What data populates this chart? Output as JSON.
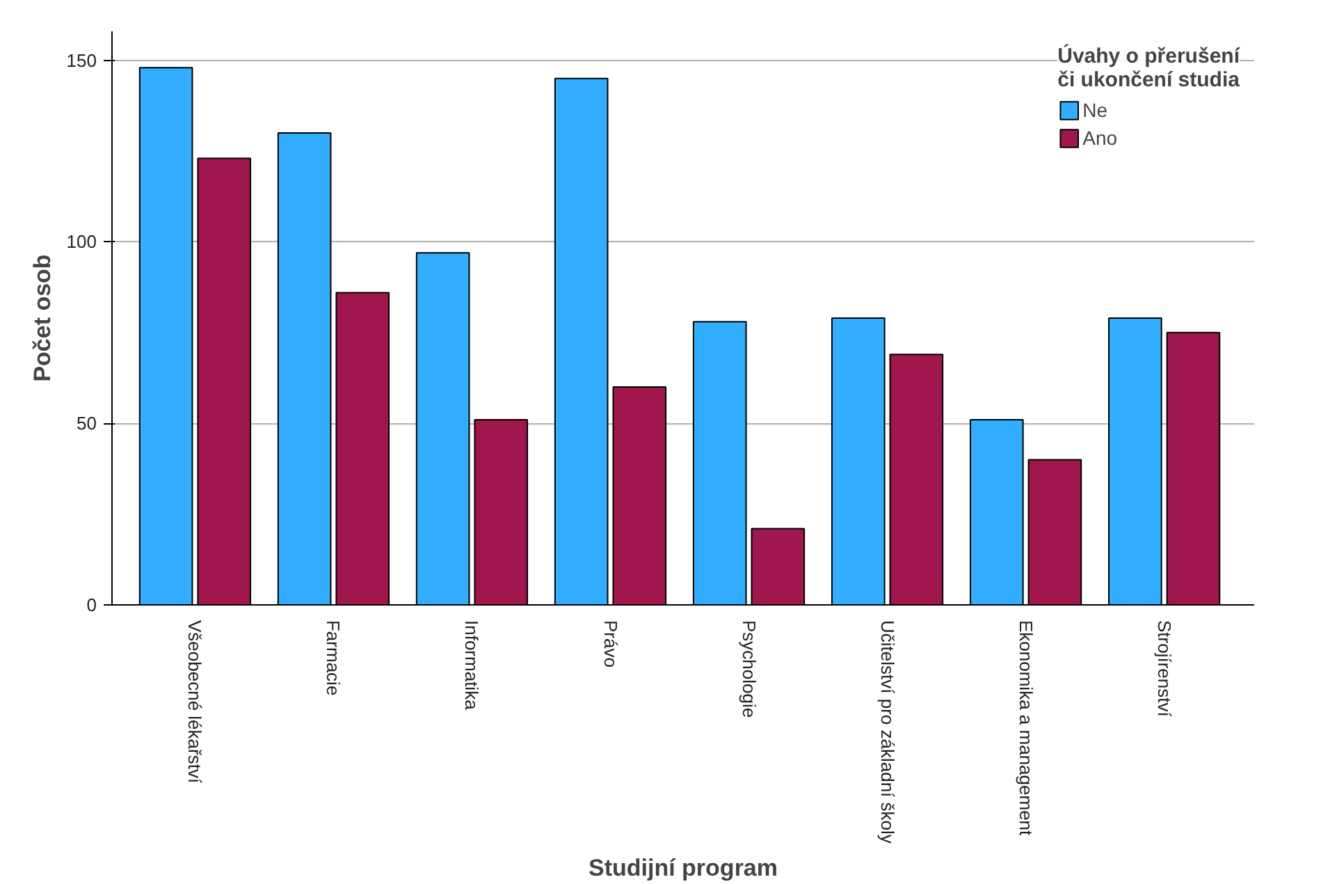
{
  "chart_data": {
    "type": "bar",
    "xlabel": "Studijní program",
    "ylabel": "Počet osob",
    "legend_title": "Úvahy o přerušení či ukončení studia",
    "categories": [
      "Všeobecné lékařství",
      "Farmacie",
      "Informatika",
      "Právo",
      "Psychologie",
      "Učitelství pro základní školy",
      "Ekonomika a management",
      "Strojírenství"
    ],
    "series": [
      {
        "name": "Ne",
        "color": "#33adff",
        "values": [
          148,
          130,
          97,
          145,
          78,
          79,
          51,
          79
        ]
      },
      {
        "name": "Ano",
        "color": "#a0174d",
        "values": [
          123,
          86,
          51,
          60,
          21,
          69,
          40,
          75
        ]
      }
    ],
    "ylim": [
      0,
      158
    ],
    "yticks": [
      0,
      50,
      100,
      150
    ],
    "grid": "y",
    "legend": "top right"
  }
}
